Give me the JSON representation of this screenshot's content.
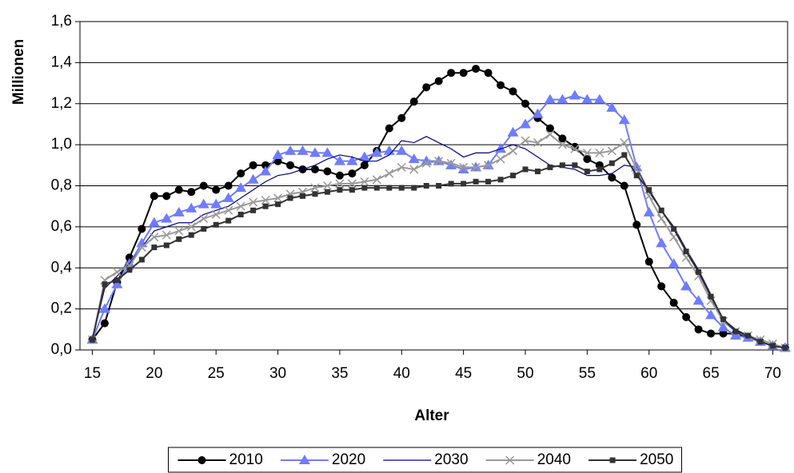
{
  "chart_data": {
    "type": "line",
    "x_label": "Alter",
    "y_label": "Millionen",
    "x": [
      15,
      16,
      17,
      18,
      19,
      20,
      21,
      22,
      23,
      24,
      25,
      26,
      27,
      28,
      29,
      30,
      31,
      32,
      33,
      34,
      35,
      36,
      37,
      38,
      39,
      40,
      41,
      42,
      43,
      44,
      45,
      46,
      47,
      48,
      49,
      50,
      51,
      52,
      53,
      54,
      55,
      56,
      57,
      58,
      59,
      60,
      61,
      62,
      63,
      64,
      65,
      66,
      67,
      68,
      69,
      70,
      71
    ],
    "xlim": [
      14,
      71.2
    ],
    "xticks": [
      15,
      20,
      25,
      30,
      35,
      40,
      45,
      50,
      55,
      60,
      65,
      70
    ],
    "ylim": [
      0,
      1.6
    ],
    "yticks": [
      {
        "value": 0,
        "label": "0,0"
      },
      {
        "value": 0.2,
        "label": "0,2"
      },
      {
        "value": 0.4,
        "label": "0,4"
      },
      {
        "value": 0.6,
        "label": "0,6"
      },
      {
        "value": 0.8,
        "label": "0,8"
      },
      {
        "value": 1,
        "label": "1,0"
      },
      {
        "value": 1.2,
        "label": "1,2"
      },
      {
        "value": 1.4,
        "label": "1,4"
      },
      {
        "value": 1.6,
        "label": "1,6"
      }
    ],
    "grid": true,
    "legend": "bottom",
    "series": [
      {
        "name": "2010",
        "color": "#000000",
        "marker": "circle",
        "values": [
          0.05,
          0.13,
          0.33,
          0.45,
          0.59,
          0.75,
          0.75,
          0.78,
          0.77,
          0.8,
          0.78,
          0.8,
          0.86,
          0.9,
          0.9,
          0.92,
          0.9,
          0.88,
          0.88,
          0.87,
          0.85,
          0.86,
          0.9,
          0.97,
          1.08,
          1.13,
          1.21,
          1.28,
          1.31,
          1.35,
          1.35,
          1.37,
          1.35,
          1.29,
          1.26,
          1.2,
          1.13,
          1.08,
          1.03,
          0.99,
          0.93,
          0.9,
          0.84,
          0.8,
          0.61,
          0.43,
          0.31,
          0.23,
          0.16,
          0.1,
          0.08,
          0.08,
          0.08,
          0.06,
          0.04,
          0.02,
          0.01
        ]
      },
      {
        "name": "2020",
        "color": "#6f7cff",
        "marker": "triangle",
        "values": [
          0.05,
          0.2,
          0.32,
          0.42,
          0.52,
          0.62,
          0.64,
          0.67,
          0.69,
          0.71,
          0.71,
          0.74,
          0.79,
          0.83,
          0.87,
          0.95,
          0.97,
          0.97,
          0.96,
          0.96,
          0.92,
          0.92,
          0.94,
          0.96,
          0.97,
          0.97,
          0.93,
          0.92,
          0.92,
          0.9,
          0.88,
          0.89,
          0.9,
          0.98,
          1.06,
          1.1,
          1.15,
          1.22,
          1.22,
          1.24,
          1.22,
          1.22,
          1.18,
          1.12,
          0.89,
          0.67,
          0.52,
          0.42,
          0.31,
          0.24,
          0.17,
          0.11,
          0.07,
          0.06,
          0.04,
          0.02,
          0.01
        ]
      },
      {
        "name": "2030",
        "color": "#000080",
        "marker": "none",
        "values": [
          0.05,
          0.3,
          0.36,
          0.42,
          0.5,
          0.58,
          0.6,
          0.62,
          0.62,
          0.66,
          0.68,
          0.7,
          0.74,
          0.78,
          0.82,
          0.85,
          0.86,
          0.88,
          0.9,
          0.93,
          0.95,
          0.94,
          0.92,
          0.92,
          0.95,
          1.02,
          1.01,
          1.04,
          1.01,
          0.98,
          0.94,
          0.96,
          0.96,
          0.98,
          1,
          0.98,
          0.94,
          0.9,
          0.89,
          0.88,
          0.85,
          0.85,
          0.86,
          0.9,
          0.89,
          0.77,
          0.68,
          0.6,
          0.49,
          0.39,
          0.27,
          0.15,
          0.1,
          0.07,
          0.05,
          0.03,
          0.01
        ]
      },
      {
        "name": "2040",
        "color": "#999999",
        "marker": "x",
        "values": [
          0.05,
          0.34,
          0.38,
          0.41,
          0.5,
          0.55,
          0.56,
          0.58,
          0.6,
          0.64,
          0.66,
          0.68,
          0.7,
          0.72,
          0.73,
          0.74,
          0.76,
          0.77,
          0.79,
          0.8,
          0.81,
          0.81,
          0.82,
          0.83,
          0.86,
          0.89,
          0.88,
          0.91,
          0.92,
          0.91,
          0.89,
          0.89,
          0.9,
          0.93,
          0.97,
          1.02,
          1.01,
          1.05,
          1,
          0.98,
          0.96,
          0.96,
          0.97,
          1.01,
          0.88,
          0.75,
          0.64,
          0.55,
          0.45,
          0.36,
          0.24,
          0.14,
          0.09,
          0.07,
          0.05,
          0.03,
          0.01
        ]
      },
      {
        "name": "2050",
        "color": "#333333",
        "marker": "square",
        "values": [
          0.05,
          0.32,
          0.34,
          0.39,
          0.44,
          0.5,
          0.51,
          0.54,
          0.56,
          0.59,
          0.61,
          0.63,
          0.66,
          0.68,
          0.7,
          0.71,
          0.74,
          0.75,
          0.76,
          0.77,
          0.78,
          0.78,
          0.79,
          0.79,
          0.79,
          0.79,
          0.79,
          0.8,
          0.8,
          0.81,
          0.81,
          0.82,
          0.82,
          0.83,
          0.85,
          0.88,
          0.87,
          0.89,
          0.9,
          0.9,
          0.87,
          0.88,
          0.91,
          0.95,
          0.85,
          0.78,
          0.68,
          0.59,
          0.48,
          0.38,
          0.26,
          0.15,
          0.09,
          0.07,
          0.04,
          0.02,
          0.01
        ]
      }
    ]
  }
}
